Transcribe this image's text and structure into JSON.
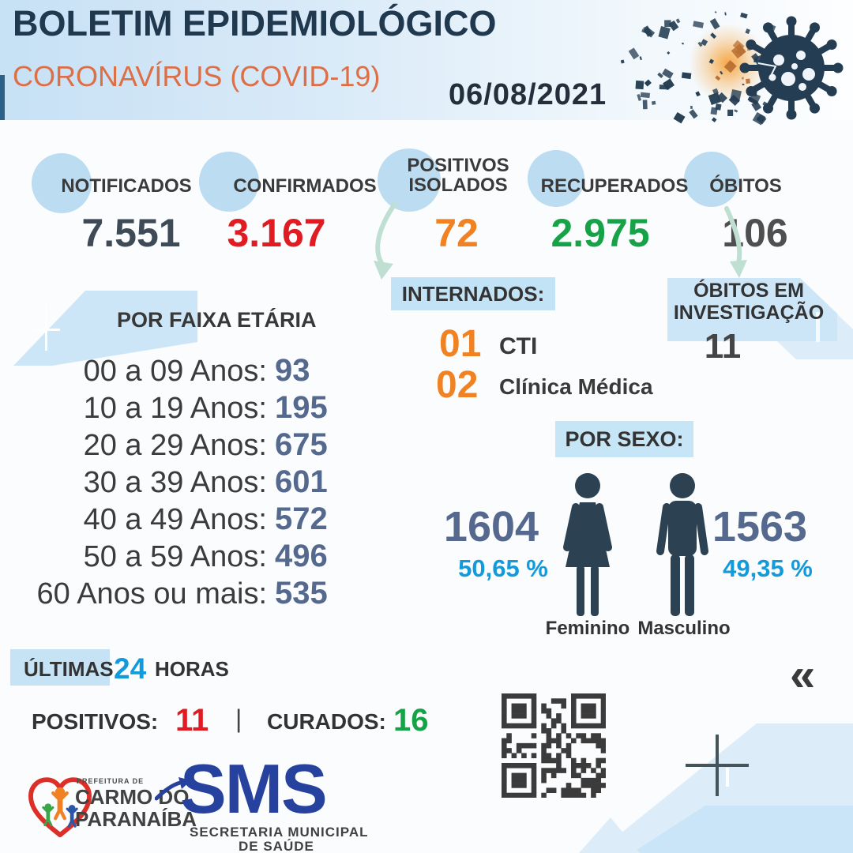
{
  "header": {
    "title": "BOLETIM EPIDEMIOLÓGICO",
    "subtitle": "CORONAVÍRUS (COVID-19)",
    "date": "06/08/2021"
  },
  "stats": [
    {
      "label": "NOTIFICADOS",
      "value": "7.551",
      "color": "#3e4a56"
    },
    {
      "label": "CONFIRMADOS",
      "value": "3.167",
      "color": "#e11b22"
    },
    {
      "label": "POSITIVOS ISOLADOS",
      "value": "72",
      "color": "#f08223"
    },
    {
      "label": "RECUPERADOS",
      "value": "2.975",
      "color": "#16a348"
    },
    {
      "label": "ÓBITOS",
      "value": "106",
      "color": "#4f4f4f"
    }
  ],
  "internados": {
    "title": "INTERNADOS:",
    "items": [
      {
        "value": "01",
        "label": "CTI"
      },
      {
        "value": "02",
        "label": "Clínica Médica"
      }
    ]
  },
  "obitos_investigacao": {
    "line1": "ÓBITOS EM",
    "line2": "INVESTIGAÇÃO",
    "value": "11"
  },
  "faixa_etaria": {
    "title": "POR FAIXA ETÁRIA",
    "rows": [
      {
        "label": "00 a 09 Anos:",
        "value": "93"
      },
      {
        "label": "10 a 19 Anos:",
        "value": "195"
      },
      {
        "label": "20 a 29 Anos:",
        "value": "675"
      },
      {
        "label": "30 a 39 Anos:",
        "value": "601"
      },
      {
        "label": "40 a 49 Anos:",
        "value": "572"
      },
      {
        "label": "50 a 59 Anos:",
        "value": "496"
      },
      {
        "label": "60 Anos ou mais:",
        "value": "535"
      }
    ]
  },
  "por_sexo": {
    "title": "POR SEXO:",
    "feminino": {
      "value": "1604",
      "percent": "50,65 %",
      "label": "Feminino"
    },
    "masculino": {
      "value": "1563",
      "percent": "49,35 %",
      "label": "Masculino"
    }
  },
  "ultimas_24h": {
    "highlight": "ÚLTIMAS",
    "number": "24",
    "suffix": "HORAS",
    "positivos_label": "POSITIVOS:",
    "positivos_value": "11",
    "separator": "|",
    "curados_label": "CURADOS:",
    "curados_value": "16"
  },
  "footer": {
    "prefeitura_tagline": "PREFEITURA DE",
    "city_line1": "CARMO DO",
    "city_line2": "PARANAÍBA",
    "org_abbr": "SMS",
    "org_line1": "SECRETARIA MUNICIPAL",
    "org_line2": "DE SAÚDE"
  },
  "decor": {
    "chevrons": "«"
  },
  "colors": {
    "navy": "#21394f",
    "subtitle_orange": "#dd6f47",
    "accent_orange": "#f08223",
    "alert_red": "#e11b22",
    "success_green": "#16a348",
    "info_cyan": "#129bdb",
    "slate_blue": "#55688e",
    "circle_blue": "#bcdcf2",
    "label_bg_blue": "#c2e2f5",
    "flag_blue": "#cde6f7",
    "flag_blue_light": "#dcedf9",
    "arrow_green": "#bfdfd2",
    "figure_navy": "#2c4252",
    "virus_navy": "#243d52",
    "qr_dark": "#3b3b3b",
    "sms_blue": "#27419e",
    "heart_red": "#dc2f27"
  }
}
